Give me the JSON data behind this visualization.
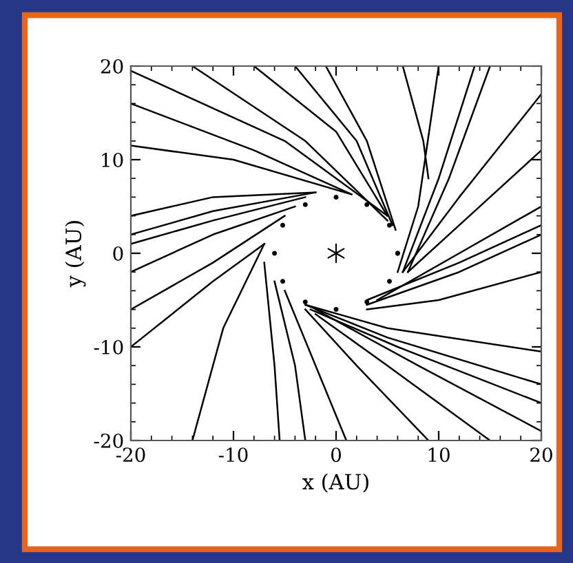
{
  "chart_data": {
    "type": "line",
    "xlabel": "x (AU)",
    "ylabel": "y (AU)",
    "xlim": [
      -20,
      20
    ],
    "ylim": [
      -20,
      20
    ],
    "xticks": [
      -20,
      -10,
      0,
      10,
      20
    ],
    "yticks": [
      -20,
      -10,
      0,
      10,
      20
    ],
    "grid": false,
    "legend": false,
    "series": [
      {
        "color": "#000000",
        "x": [
          -20,
          -5,
          5
        ],
        "values": [
          19.5,
          12,
          4
        ]
      },
      {
        "color": "#000000",
        "x": [
          -20,
          -8,
          1.5
        ],
        "values": [
          16,
          11,
          6.3
        ]
      },
      {
        "color": "#000000",
        "x": [
          -20,
          -10,
          1.5
        ],
        "values": [
          11.5,
          10,
          6.3
        ]
      },
      {
        "color": "#000000",
        "x": [
          -14,
          -3,
          5
        ],
        "values": [
          20,
          12,
          3.5
        ]
      },
      {
        "color": "#000000",
        "x": [
          -8,
          0,
          5
        ],
        "values": [
          20,
          13,
          4
        ]
      },
      {
        "color": "#000000",
        "x": [
          -4,
          2,
          5.5
        ],
        "values": [
          20,
          12,
          3
        ]
      },
      {
        "color": "#000000",
        "x": [
          -1,
          3,
          5.8
        ],
        "values": [
          20,
          12,
          2.5
        ]
      },
      {
        "color": "#000000",
        "x": [
          6.5,
          8.5,
          9
        ],
        "values": [
          20,
          12,
          8
        ]
      },
      {
        "color": "#000000",
        "x": [
          10,
          8,
          6
        ],
        "values": [
          20,
          5,
          -2
        ]
      },
      {
        "color": "#000000",
        "x": [
          13.5,
          10,
          6.5
        ],
        "values": [
          20,
          8,
          -2
        ]
      },
      {
        "color": "#000000",
        "x": [
          15,
          11,
          7
        ],
        "values": [
          20,
          8,
          -2
        ]
      },
      {
        "color": "#000000",
        "x": [
          20,
          12,
          6.5
        ],
        "values": [
          17,
          6,
          -2
        ]
      },
      {
        "color": "#000000",
        "x": [
          20,
          13,
          7
        ],
        "values": [
          11,
          4,
          -2
        ]
      },
      {
        "color": "#000000",
        "x": [
          20,
          12,
          4
        ],
        "values": [
          5,
          0,
          -5
        ]
      },
      {
        "color": "#000000",
        "x": [
          20,
          12,
          3
        ],
        "values": [
          3,
          -1,
          -5
        ]
      },
      {
        "color": "#000000",
        "x": [
          20,
          12,
          3
        ],
        "values": [
          2,
          -2,
          -5.5
        ]
      },
      {
        "color": "#000000",
        "x": [
          20,
          10,
          3
        ],
        "values": [
          -2,
          -5,
          -6
        ]
      },
      {
        "color": "#000000",
        "x": [
          20,
          5,
          -3
        ],
        "values": [
          -10.5,
          -8,
          -5.5
        ]
      },
      {
        "color": "#000000",
        "x": [
          20,
          5,
          -3
        ],
        "values": [
          -14,
          -9,
          -5.5
        ]
      },
      {
        "color": "#000000",
        "x": [
          20,
          6,
          -2.5
        ],
        "values": [
          -16,
          -10,
          -6
        ]
      },
      {
        "color": "#000000",
        "x": [
          20,
          8,
          -2
        ],
        "values": [
          -19,
          -12,
          -6
        ]
      },
      {
        "color": "#000000",
        "x": [
          15,
          5,
          -2
        ],
        "values": [
          -20,
          -12,
          -6.5
        ]
      },
      {
        "color": "#000000",
        "x": [
          9,
          2,
          -3
        ],
        "values": [
          -20,
          -12,
          -6
        ]
      },
      {
        "color": "#000000",
        "x": [
          1,
          -2,
          -5
        ],
        "values": [
          -20,
          -12,
          -4
        ]
      },
      {
        "color": "#000000",
        "x": [
          -3,
          -4,
          -6
        ],
        "values": [
          -20,
          -12,
          -3
        ]
      },
      {
        "color": "#000000",
        "x": [
          -5.5,
          -6,
          -7
        ],
        "values": [
          -20,
          -12,
          -1
        ]
      },
      {
        "color": "#000000",
        "x": [
          -14,
          -11,
          -7
        ],
        "values": [
          -20,
          -8,
          1
        ]
      },
      {
        "color": "#000000",
        "x": [
          -20,
          -12,
          -7
        ],
        "values": [
          -10,
          -3,
          1
        ]
      },
      {
        "color": "#000000",
        "x": [
          -20,
          -12,
          -5
        ],
        "values": [
          -6,
          -1,
          4
        ]
      },
      {
        "color": "#000000",
        "x": [
          -20,
          -12,
          -4
        ],
        "values": [
          -2,
          2,
          5
        ]
      },
      {
        "color": "#000000",
        "x": [
          -20,
          -12,
          -3
        ],
        "values": [
          1,
          3.5,
          6
        ]
      },
      {
        "color": "#000000",
        "x": [
          -20,
          -12,
          -2
        ],
        "values": [
          2,
          4.5,
          6.5
        ]
      },
      {
        "color": "#000000",
        "x": [
          -20,
          -12,
          -2
        ],
        "values": [
          4,
          6,
          6.5
        ]
      },
      {
        "color": "#000000",
        "type": "scatter",
        "marker": "circle",
        "x": [
          6,
          5.2,
          3,
          0,
          -3,
          -5.2,
          -6,
          -5.2,
          -3,
          0,
          3,
          5.2,
          6
        ],
        "values": [
          0,
          3,
          5.2,
          6,
          5.2,
          3,
          0,
          -3,
          -5.2,
          -6,
          -5.2,
          -3,
          0
        ]
      },
      {
        "color": "#000000",
        "type": "scatter",
        "marker": "cross",
        "x": [
          0
        ],
        "values": [
          0
        ]
      }
    ]
  }
}
